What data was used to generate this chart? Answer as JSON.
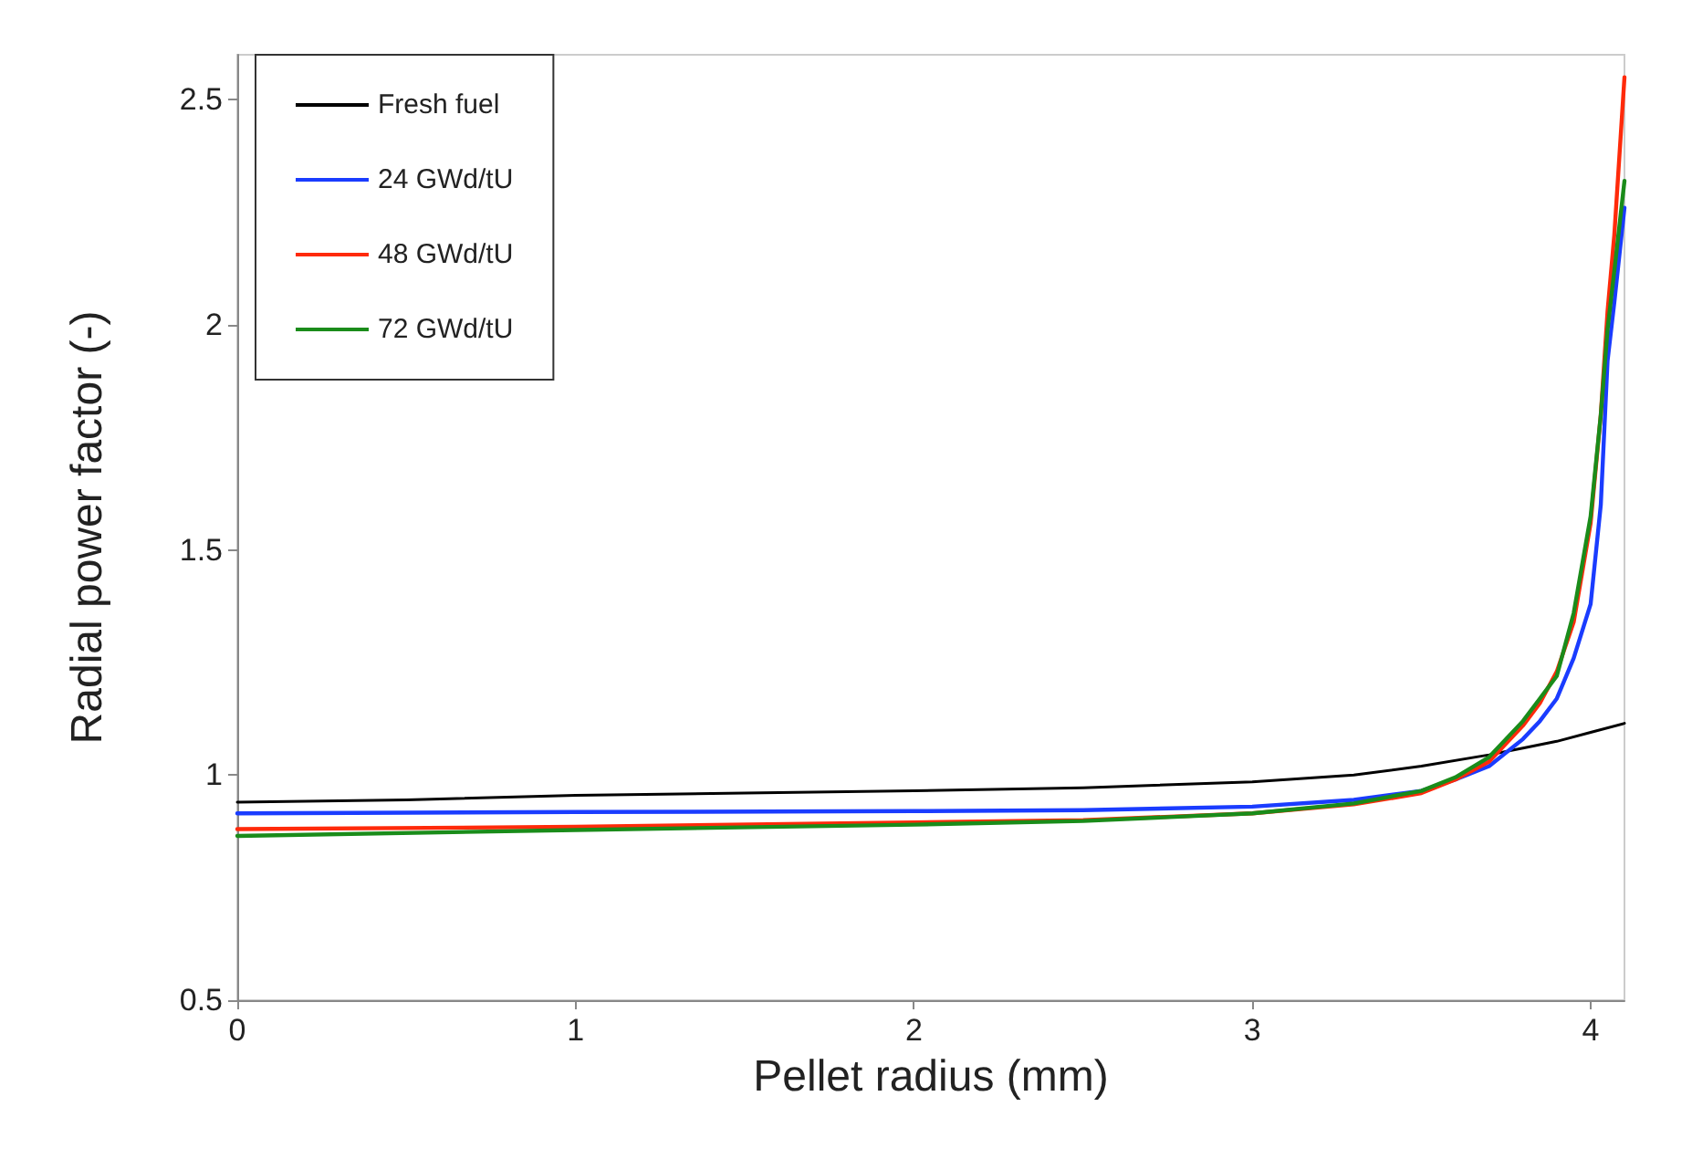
{
  "chart_data": {
    "type": "line",
    "xlabel": "Pellet radius (mm)",
    "ylabel": "Radial power factor (-)",
    "xlim": [
      0,
      4.1
    ],
    "xticks": [
      0,
      1,
      2,
      3,
      4
    ],
    "ylim": [
      0.5,
      2.6
    ],
    "yticks": [
      0.5,
      1,
      1.5,
      2,
      2.5
    ],
    "grid": false,
    "legend": "top left",
    "marker": "none",
    "line_style": "solid",
    "series": [
      {
        "name": "Fresh fuel",
        "color": "#000000",
        "x": [
          0,
          0.5,
          1,
          1.5,
          2,
          2.5,
          3,
          3.3,
          3.5,
          3.7,
          3.8,
          3.9,
          4,
          4.1
        ],
        "values": [
          0.94,
          0.945,
          0.955,
          0.96,
          0.965,
          0.972,
          0.985,
          1.0,
          1.02,
          1.045,
          1.06,
          1.075,
          1.095,
          1.115
        ]
      },
      {
        "name": "24 GWd/tU",
        "color": "#1a3cff",
        "x": [
          0,
          1,
          2,
          2.5,
          3,
          3.3,
          3.5,
          3.6,
          3.7,
          3.8,
          3.85,
          3.9,
          3.95,
          4,
          4.03,
          4.05,
          4.07,
          4.1
        ],
        "values": [
          0.915,
          0.918,
          0.92,
          0.922,
          0.93,
          0.945,
          0.965,
          0.99,
          1.02,
          1.08,
          1.12,
          1.17,
          1.26,
          1.38,
          1.6,
          1.92,
          2.05,
          2.26
        ]
      },
      {
        "name": "48 GWd/tU",
        "color": "#ff2a0a",
        "x": [
          0,
          1,
          2,
          2.5,
          3,
          3.3,
          3.5,
          3.6,
          3.7,
          3.8,
          3.85,
          3.9,
          3.95,
          4,
          4.03,
          4.05,
          4.07,
          4.1
        ],
        "values": [
          0.88,
          0.885,
          0.895,
          0.9,
          0.915,
          0.935,
          0.96,
          0.99,
          1.03,
          1.11,
          1.16,
          1.23,
          1.34,
          1.56,
          1.8,
          2.03,
          2.2,
          2.55
        ]
      },
      {
        "name": "72 GWd/tU",
        "color": "#1a8c1a",
        "x": [
          0,
          1,
          2,
          2.5,
          3,
          3.3,
          3.5,
          3.6,
          3.7,
          3.8,
          3.85,
          3.9,
          3.95,
          4,
          4.03,
          4.05,
          4.07,
          4.1
        ],
        "values": [
          0.865,
          0.878,
          0.89,
          0.898,
          0.915,
          0.937,
          0.965,
          0.995,
          1.04,
          1.12,
          1.17,
          1.22,
          1.36,
          1.575,
          1.8,
          1.99,
          2.12,
          2.32
        ]
      }
    ]
  }
}
